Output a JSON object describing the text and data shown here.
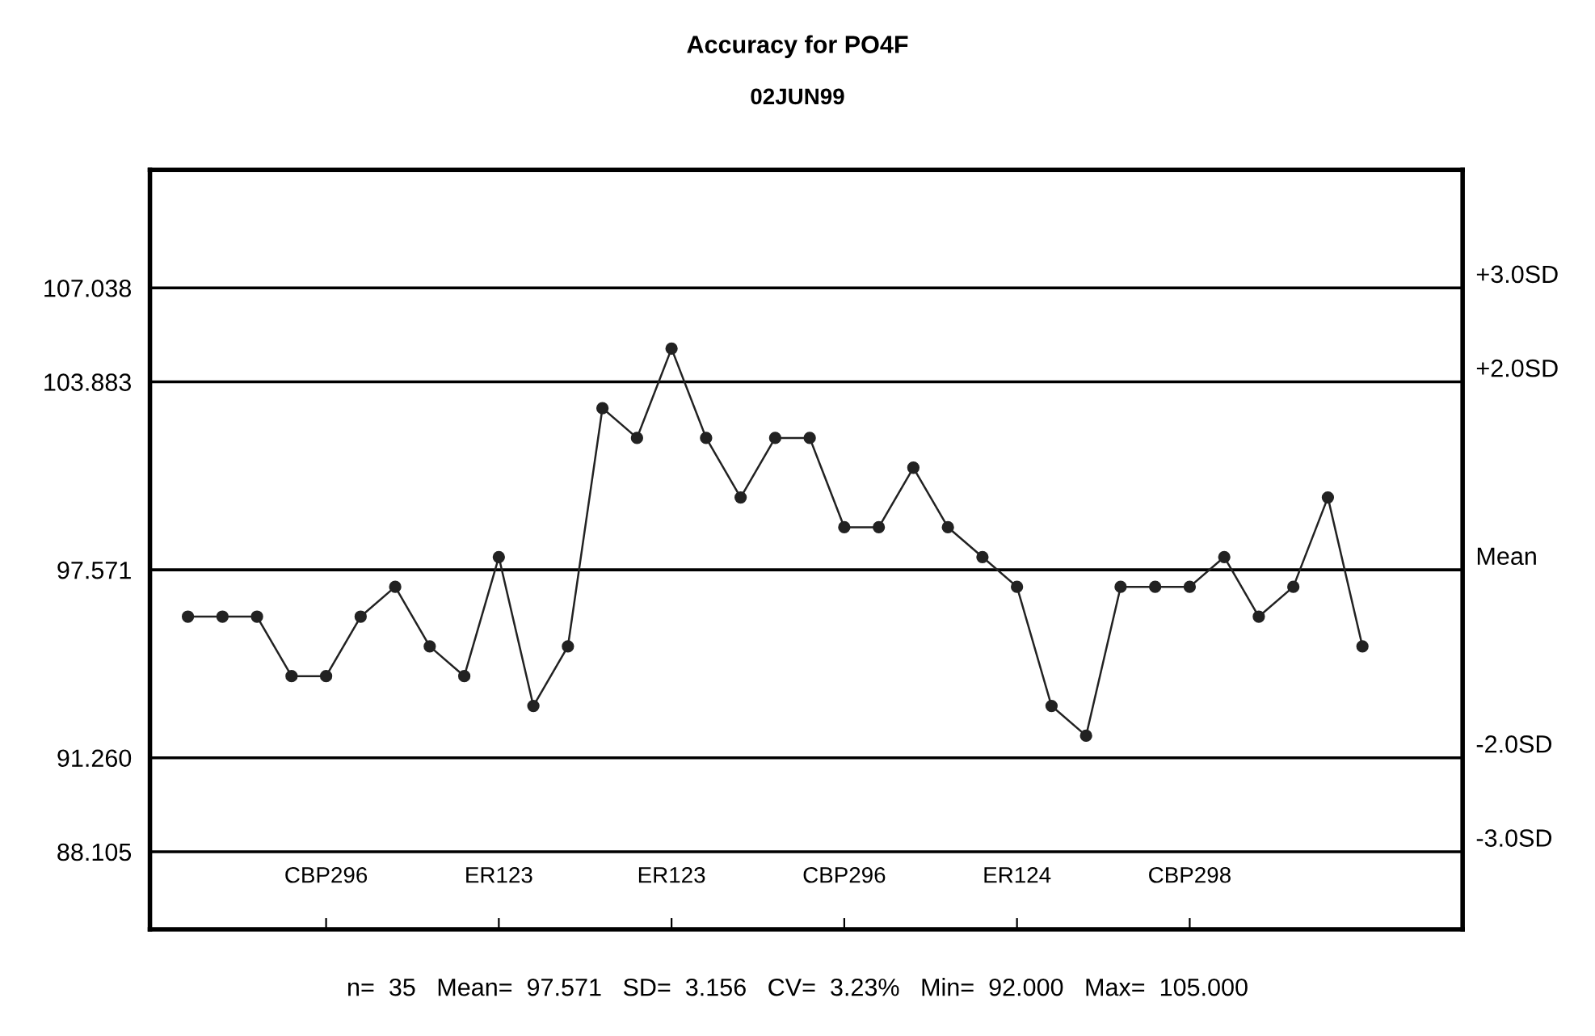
{
  "chart_data": {
    "type": "line",
    "title": "Accuracy for PO4F",
    "subtitle": "02JUN99",
    "categories": [
      null,
      null,
      null,
      null,
      "CBP296",
      null,
      null,
      null,
      null,
      "ER123",
      null,
      null,
      null,
      null,
      "ER123",
      null,
      null,
      null,
      null,
      "CBP296",
      null,
      null,
      null,
      null,
      "ER124",
      null,
      null,
      null,
      null,
      "CBP298",
      null,
      null,
      null,
      null,
      null
    ],
    "series": [
      {
        "color": "#222222",
        "values": [
          96,
          96,
          96,
          94,
          94,
          96,
          97,
          95,
          94,
          98,
          93,
          95,
          103,
          102,
          105,
          102,
          100,
          102,
          102,
          99,
          99,
          101,
          99,
          98,
          97,
          93,
          92,
          97,
          97,
          97,
          98,
          96,
          97,
          100,
          95
        ]
      }
    ],
    "marker": "circle",
    "line_style": "solid",
    "grid": false,
    "legend": false,
    "ylim": [
      85.5,
      111
    ],
    "yticks": [
      88.105,
      {
        "value": 91.26,
        "label": "91.260"
      },
      97.571,
      103.883,
      107.038
    ],
    "ref_lines": [
      {
        "axis": "y",
        "value": 107.038,
        "label": "+3.0SD",
        "color": "#000000"
      },
      {
        "axis": "y",
        "value": 103.883,
        "label": "+2.0SD",
        "color": "#000000"
      },
      {
        "axis": "y",
        "value": 97.571,
        "label": "Mean",
        "color": "#000000"
      },
      {
        "axis": "y",
        "value": 91.26,
        "label": "-2.0SD",
        "color": "#000000"
      },
      {
        "axis": "y",
        "value": 88.105,
        "label": "-3.0SD",
        "color": "#000000"
      }
    ],
    "annotations": [
      "n=  35   Mean=  97.571   SD=  3.156   CV=  3.23%   Min=  92.000   Max=  105.000"
    ]
  }
}
